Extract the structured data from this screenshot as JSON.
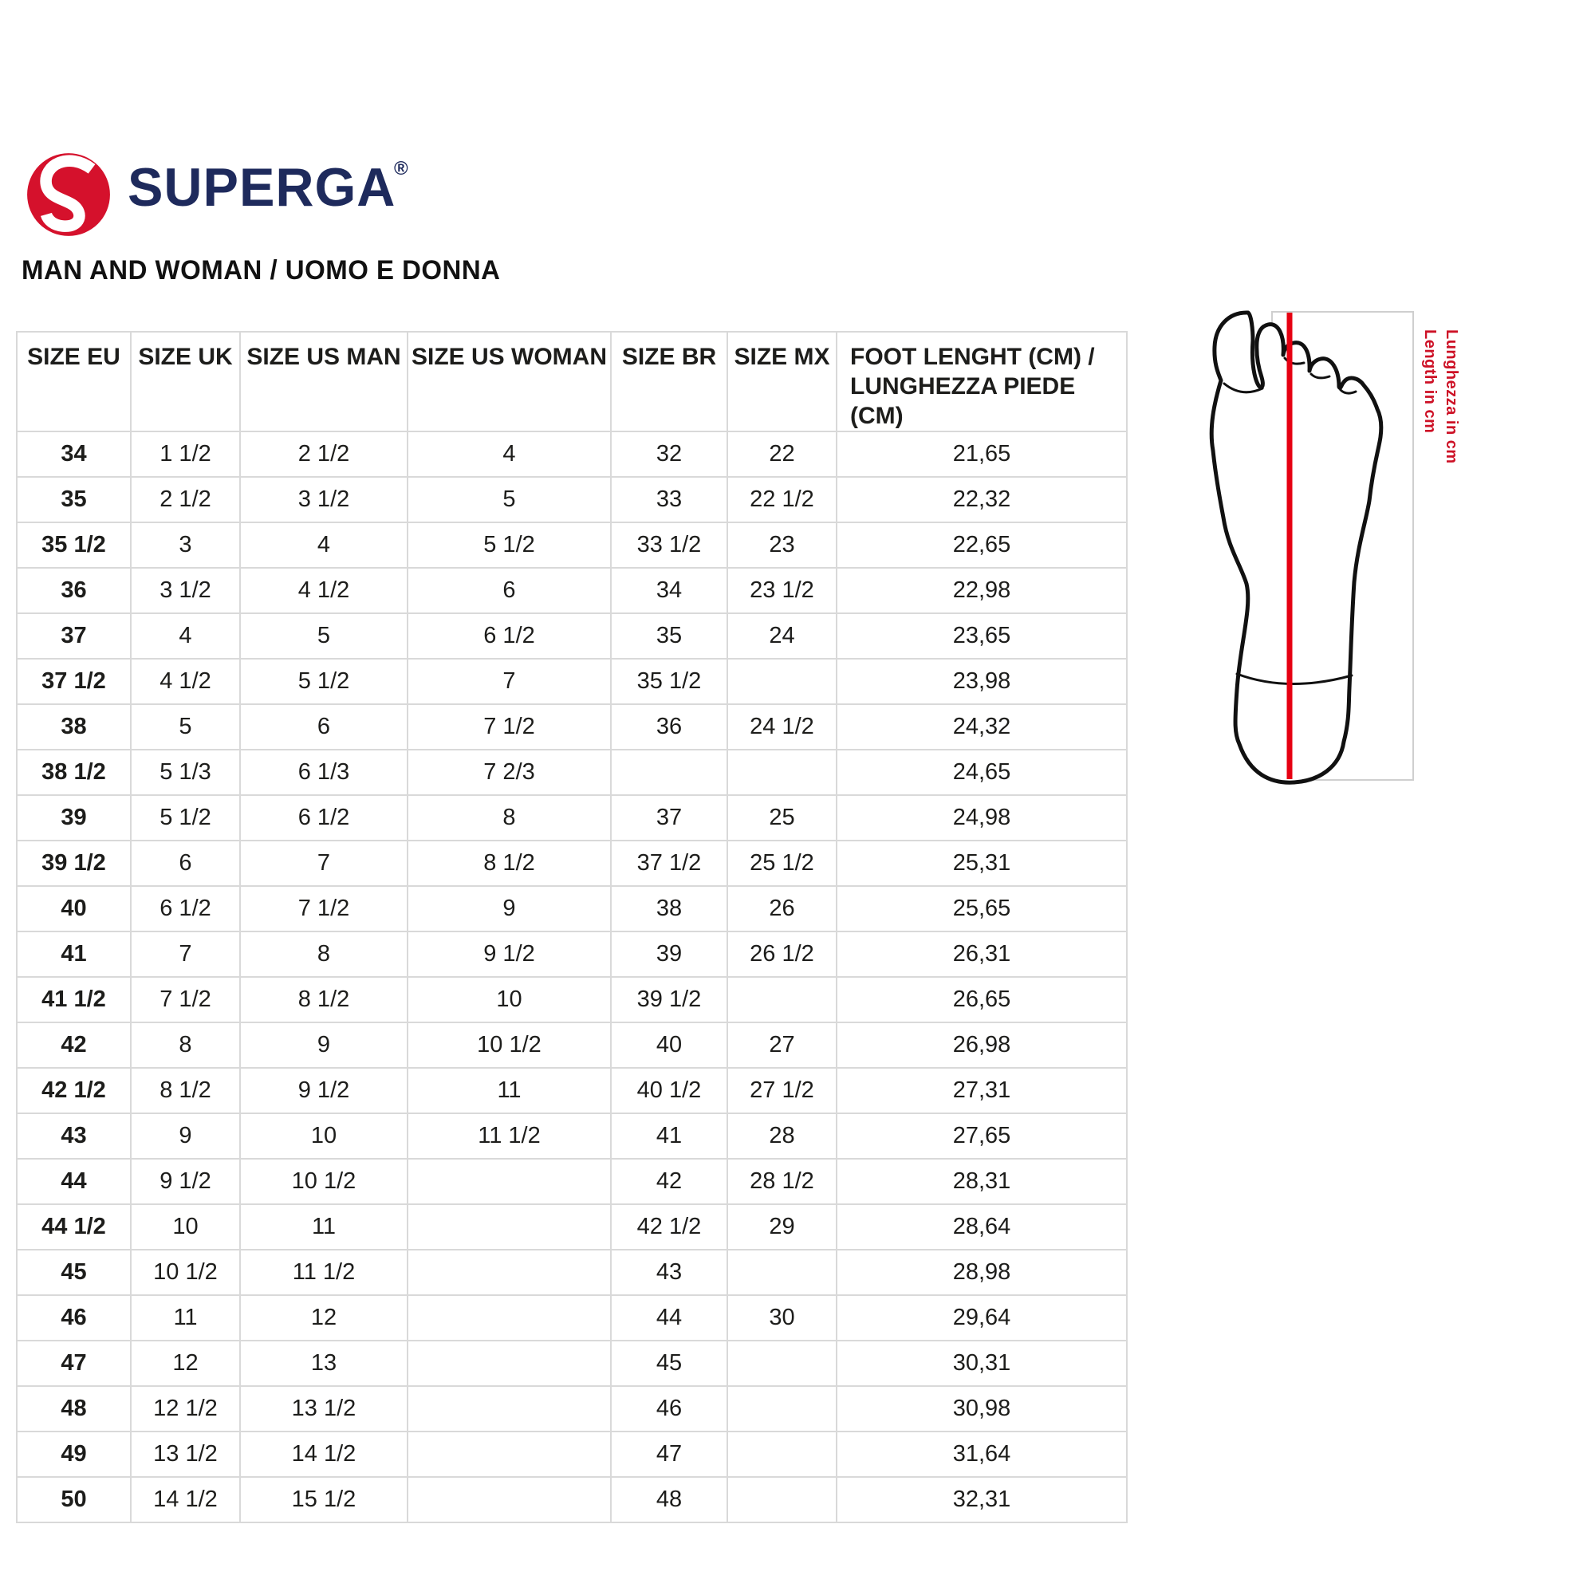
{
  "logo": {
    "brand": "SUPERGA",
    "registered": "®",
    "emblem_icon": "superga-s-circle"
  },
  "subtitle": "MAN AND WOMAN / UOMO E DONNA",
  "table": {
    "headers": [
      "SIZE EU",
      "SIZE UK",
      "SIZE US MAN",
      "SIZE US WOMAN",
      "SIZE BR",
      "SIZE MX",
      "FOOT LENGHT (CM) /\nLUNGHEZZA PIEDE (CM)"
    ],
    "rows": [
      [
        "34",
        "1 1/2",
        "2 1/2",
        "4",
        "32",
        "22",
        "21,65"
      ],
      [
        "35",
        "2 1/2",
        "3 1/2",
        "5",
        "33",
        "22 1/2",
        "22,32"
      ],
      [
        "35 1/2",
        "3",
        "4",
        "5 1/2",
        "33 1/2",
        "23",
        "22,65"
      ],
      [
        "36",
        "3 1/2",
        "4 1/2",
        "6",
        "34",
        "23 1/2",
        "22,98"
      ],
      [
        "37",
        "4",
        "5",
        "6 1/2",
        "35",
        "24",
        "23,65"
      ],
      [
        "37 1/2",
        "4 1/2",
        "5 1/2",
        "7",
        "35 1/2",
        "",
        "23,98"
      ],
      [
        "38",
        "5",
        "6",
        "7 1/2",
        "36",
        "24 1/2",
        "24,32"
      ],
      [
        "38 1/2",
        "5 1/3",
        "6 1/3",
        "7 2/3",
        "",
        "",
        "24,65"
      ],
      [
        "39",
        "5 1/2",
        "6 1/2",
        "8",
        "37",
        "25",
        "24,98"
      ],
      [
        "39 1/2",
        "6",
        "7",
        "8 1/2",
        "37 1/2",
        "25 1/2",
        "25,31"
      ],
      [
        "40",
        "6 1/2",
        "7 1/2",
        "9",
        "38",
        "26",
        "25,65"
      ],
      [
        "41",
        "7",
        "8",
        "9 1/2",
        "39",
        "26 1/2",
        "26,31"
      ],
      [
        "41 1/2",
        "7 1/2",
        "8 1/2",
        "10",
        "39 1/2",
        "",
        "26,65"
      ],
      [
        "42",
        "8",
        "9",
        "10 1/2",
        "40",
        "27",
        "26,98"
      ],
      [
        "42 1/2",
        "8 1/2",
        "9 1/2",
        "11",
        "40 1/2",
        "27 1/2",
        "27,31"
      ],
      [
        "43",
        "9",
        "10",
        "11 1/2",
        "41",
        "28",
        "27,65"
      ],
      [
        "44",
        "9 1/2",
        "10 1/2",
        "",
        "42",
        "28 1/2",
        "28,31"
      ],
      [
        "44 1/2",
        "10",
        "11",
        "",
        "42 1/2",
        "29",
        "28,64"
      ],
      [
        "45",
        "10 1/2",
        "11 1/2",
        "",
        "43",
        "",
        "28,98"
      ],
      [
        "46",
        "11",
        "12",
        "",
        "44",
        "30",
        "29,64"
      ],
      [
        "47",
        "12",
        "13",
        "",
        "45",
        "",
        "30,31"
      ],
      [
        "48",
        "12 1/2",
        "13 1/2",
        "",
        "46",
        "",
        "30,98"
      ],
      [
        "49",
        "13 1/2",
        "14 1/2",
        "",
        "47",
        "",
        "31,64"
      ],
      [
        "50",
        "14 1/2",
        "15 1/2",
        "",
        "48",
        "",
        "32,31"
      ]
    ]
  },
  "diagram": {
    "label_en": "Length in cm",
    "label_it": "Lunghezza in cm",
    "foot_icon": "foot-sole-outline"
  },
  "colors": {
    "brand_navy": "#1e2a5c",
    "brand_red": "#d5112c",
    "line_red": "#e60012",
    "label_red": "#cd1126",
    "border_gray": "#d9d9d9"
  }
}
